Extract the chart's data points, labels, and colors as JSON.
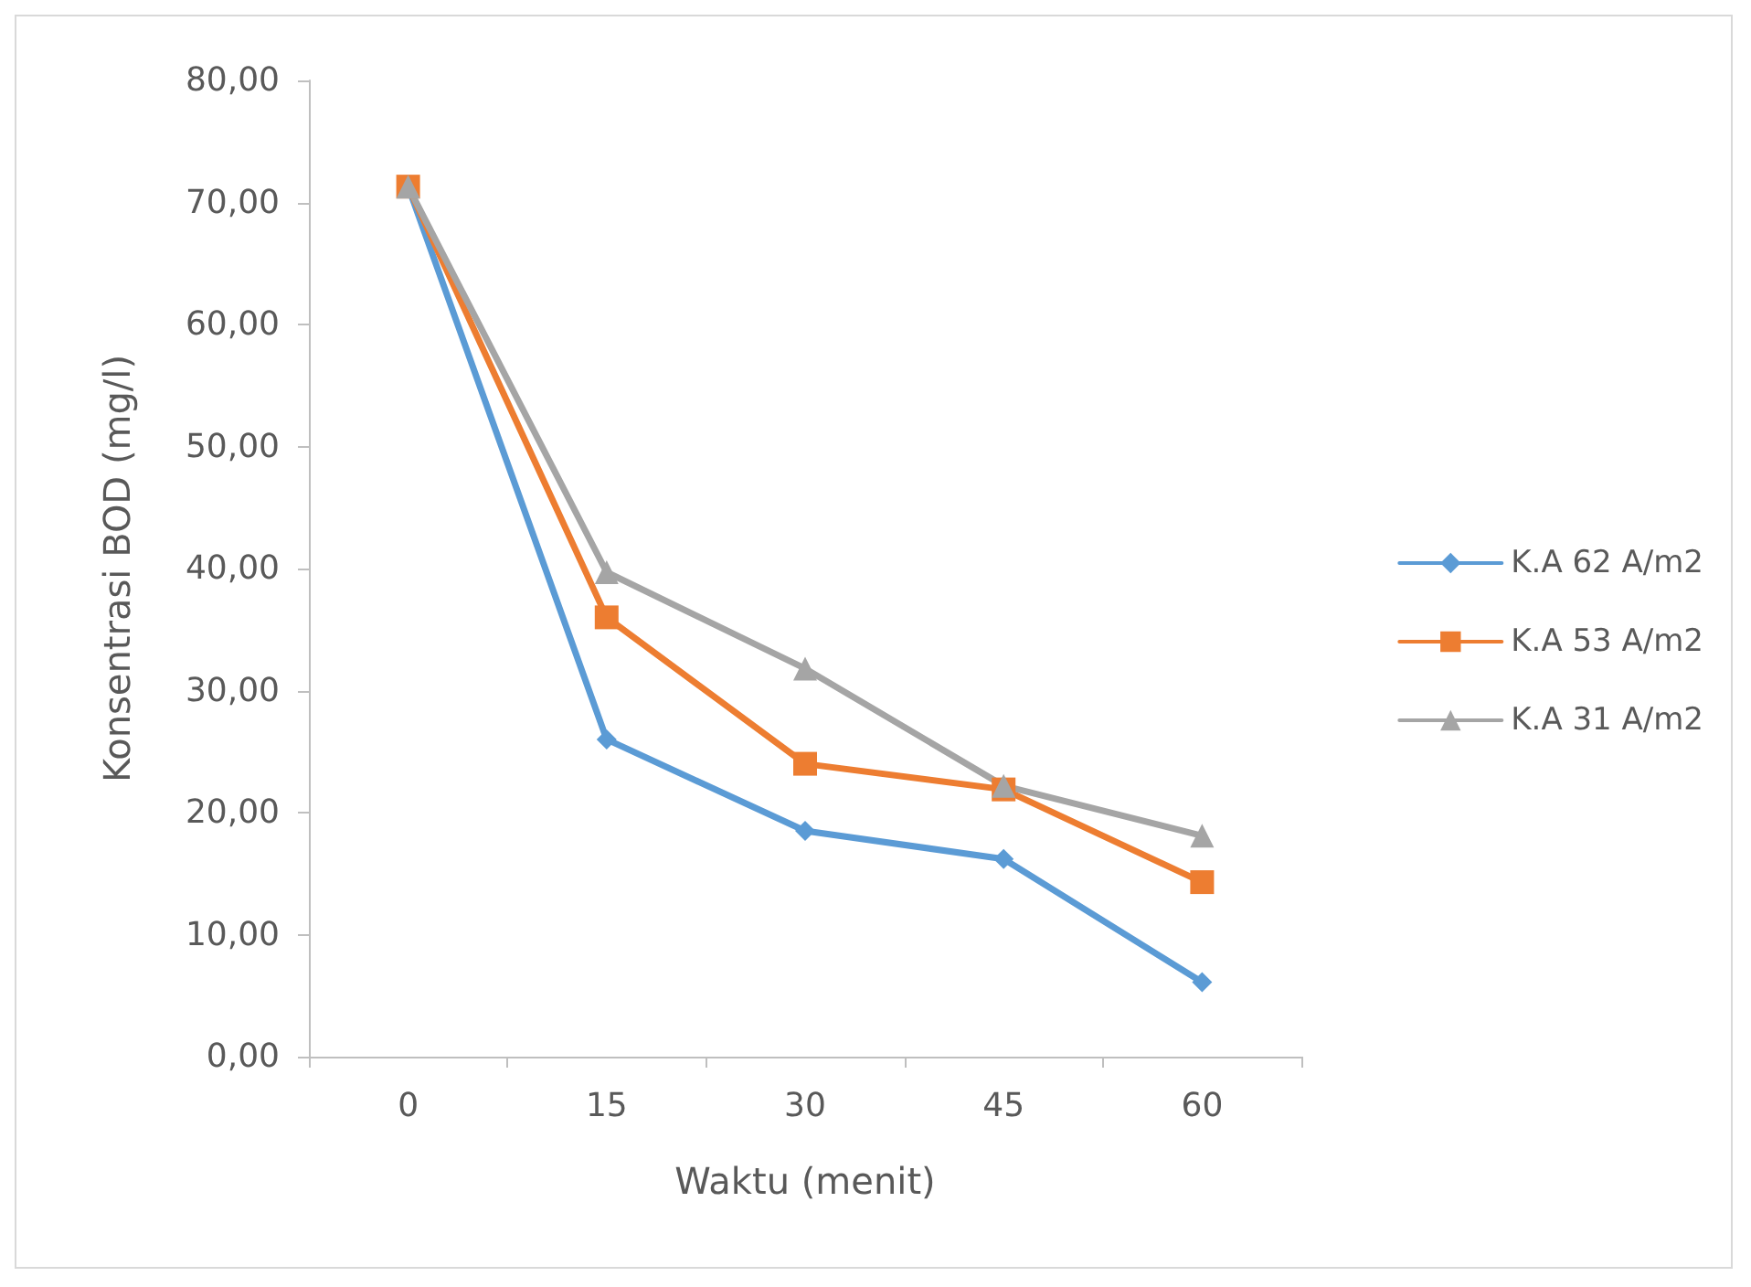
{
  "chart_data": {
    "type": "line",
    "xlabel": "Waktu (menit)",
    "ylabel": "Konsentrasi BOD (mg/l)",
    "categories": [
      "0",
      "15",
      "30",
      "45",
      "60"
    ],
    "ylim": [
      0,
      80
    ],
    "yticks": [
      {
        "value": 0,
        "label": "0,00"
      },
      {
        "value": 10,
        "label": "10,00"
      },
      {
        "value": 20,
        "label": "20,00"
      },
      {
        "value": 30,
        "label": "30,00"
      },
      {
        "value": 40,
        "label": "40,00"
      },
      {
        "value": 50,
        "label": "50,00"
      },
      {
        "value": 60,
        "label": "60,00"
      },
      {
        "value": 70,
        "label": "70,00"
      },
      {
        "value": 80,
        "label": "80,00"
      }
    ],
    "grid": false,
    "legend": "right",
    "line_style": "solid",
    "series": [
      {
        "name": "K.A 62 A/m2",
        "color": "#5b9bd5",
        "marker": "diamond",
        "values": [
          71.3,
          26.0,
          18.5,
          16.2,
          6.1
        ]
      },
      {
        "name": "K.A 53 A/m2",
        "color": "#ed7d31",
        "marker": "square",
        "values": [
          71.3,
          36.0,
          24.0,
          21.9,
          14.3
        ]
      },
      {
        "name": "K.A 31 A/m2",
        "color": "#a5a5a5",
        "marker": "triangle",
        "values": [
          71.3,
          39.7,
          31.8,
          22.2,
          18.1
        ]
      }
    ]
  }
}
